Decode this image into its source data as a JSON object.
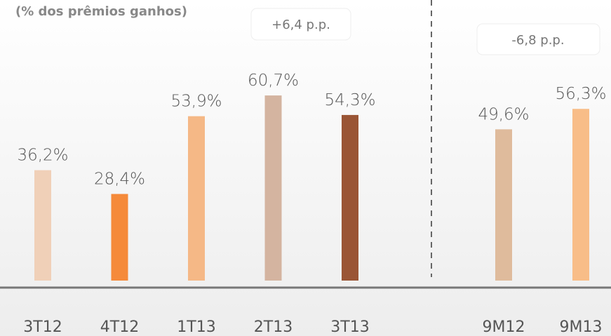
{
  "chart_data": {
    "type": "bar",
    "subtitle": "(% dos prêmios ganhos)",
    "categories": [
      "3T12",
      "4T12",
      "1T13",
      "2T13",
      "3T13",
      "9M12",
      "9M13"
    ],
    "values": [
      36.2,
      28.4,
      53.9,
      60.7,
      54.3,
      49.6,
      56.3
    ],
    "value_labels": [
      "36,2%",
      "28,4%",
      "53,9%",
      "60,7%",
      "54,3%",
      "49,6%",
      "56,3%"
    ],
    "colors": [
      "#f0d0b8",
      "#f58a3a",
      "#f5b886",
      "#d4b4a0",
      "#9a5535",
      "#dfbb9c",
      "#f8bd88"
    ],
    "ylim": [
      0,
      92
    ],
    "annotations": [
      "+6,4 p.p.",
      "-6,8 p.p."
    ]
  }
}
